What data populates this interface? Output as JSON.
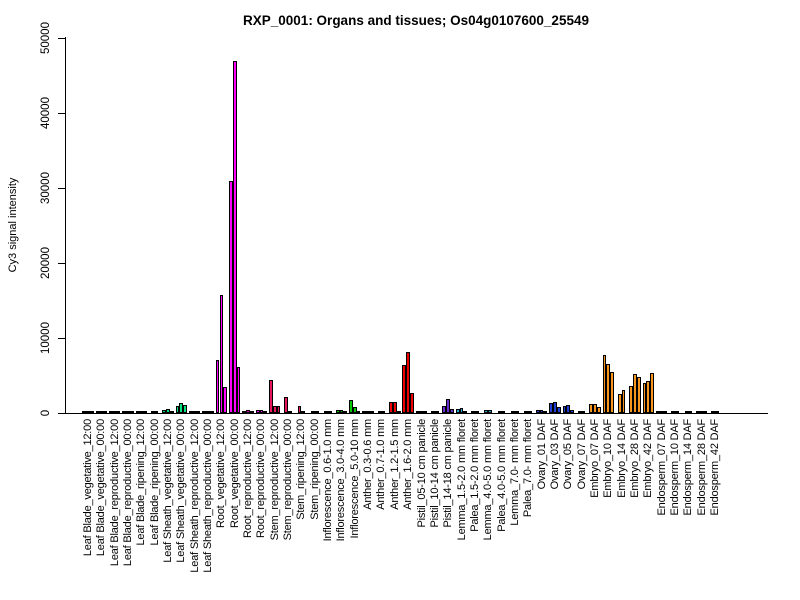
{
  "chart_data": {
    "type": "bar",
    "title": "RXP_0001: Organs and tissues; Os04g0107600_25549",
    "ylabel": "Cy3 signal intensity",
    "xlabel": "",
    "ylim": [
      0,
      50000
    ],
    "yticks": [
      0,
      10000,
      20000,
      30000,
      40000,
      50000
    ],
    "grid": false,
    "legend": "none",
    "bar_border_color": "#000000",
    "organ_colors": {
      "leaf_blade": "#005a00",
      "leaf_sheath": "#00e07d",
      "root": "#ff00ff",
      "stem": "#e8175d",
      "inflorescence": "#00c800",
      "anther": "#ee0000",
      "pistil": "#6a2fd0",
      "lemma": "#29abe2",
      "palea": "#29abe2",
      "ovary": "#1f3fd4",
      "embryo": "#f7941d",
      "endosperm": "#77651a"
    },
    "groups": [
      {
        "label": "Leaf Blade_vegetative_12:00",
        "organ": "leaf_blade",
        "color": "#005a00",
        "values": [
          150,
          200,
          150
        ]
      },
      {
        "label": "Leaf Blade_vegetative_00:00",
        "organ": "leaf_blade",
        "color": "#005a00",
        "values": [
          150,
          200,
          150
        ]
      },
      {
        "label": "Leaf Blade_reproductive_12:00",
        "organ": "leaf_blade",
        "color": "#005a00",
        "values": [
          200,
          150,
          150
        ]
      },
      {
        "label": "Leaf Blade_reproductive_00:00",
        "organ": "leaf_blade",
        "color": "#005a00",
        "values": [
          150,
          200,
          150
        ]
      },
      {
        "label": "Leaf Blade_ripening_12:00",
        "organ": "leaf_blade",
        "color": "#005a00",
        "values": [
          150,
          200,
          150
        ]
      },
      {
        "label": "Leaf Blade_ripening_00:00",
        "organ": "leaf_blade",
        "color": "#005a00",
        "values": [
          150,
          150
        ]
      },
      {
        "label": "Leaf Sheath_vegetative_12:00",
        "organ": "leaf_sheath",
        "color": "#00e07d",
        "values": [
          400,
          500,
          300
        ]
      },
      {
        "label": "Leaf Sheath_vegetative_00:00",
        "organ": "leaf_sheath",
        "color": "#00e07d",
        "values": [
          900,
          1300,
          1100
        ]
      },
      {
        "label": "Leaf Sheath_reproductive_12:00",
        "organ": "leaf_sheath",
        "color": "#00e07d",
        "values": [
          200,
          150,
          150
        ]
      },
      {
        "label": "Leaf Sheath_reproductive_00:00",
        "organ": "leaf_sheath",
        "color": "#00e07d",
        "values": [
          150,
          200,
          150
        ]
      },
      {
        "label": "Root_vegetative_12:00",
        "organ": "root",
        "color": "#ff00ff",
        "values": [
          7100,
          15700,
          3500
        ]
      },
      {
        "label": "Root_vegetative_00:00",
        "organ": "root",
        "color": "#ff00ff",
        "values": [
          31000,
          47000,
          6100
        ]
      },
      {
        "label": "Root_reproductive_12:00",
        "organ": "root",
        "color": "#ff00ff",
        "values": [
          300,
          350,
          250
        ]
      },
      {
        "label": "Root_reproductive_00:00",
        "organ": "root",
        "color": "#ff00ff",
        "values": [
          400,
          350,
          300
        ]
      },
      {
        "label": "Stem_reproductive_12:00",
        "organ": "stem",
        "color": "#e8175d",
        "values": [
          4400,
          1000,
          950
        ]
      },
      {
        "label": "Stem_reproductive_00:00",
        "organ": "stem",
        "color": "#e8175d",
        "values": [
          2100,
          250
        ]
      },
      {
        "label": "Stem_ripening_12:00",
        "organ": "stem",
        "color": "#e8175d",
        "values": [
          900,
          250
        ]
      },
      {
        "label": "Stem_ripening_00:00",
        "organ": "stem",
        "color": "#e8175d",
        "values": [
          250,
          200
        ]
      },
      {
        "label": "Inflorescence_0.6-1.0 mm",
        "organ": "inflorescence",
        "color": "#00c800",
        "values": [
          150,
          150
        ]
      },
      {
        "label": "Inflorescence_3.0-4.0 mm",
        "organ": "inflorescence",
        "color": "#00c800",
        "values": [
          350,
          400,
          300
        ]
      },
      {
        "label": "Inflorescence_5.0-10 mm",
        "organ": "inflorescence",
        "color": "#00c800",
        "values": [
          1800,
          800,
          250
        ]
      },
      {
        "label": "Anther_0.3-0.6 mm",
        "organ": "anther",
        "color": "#ee0000",
        "values": [
          250,
          200,
          150
        ]
      },
      {
        "label": "Anther_0.7-1.0 mm",
        "organ": "anther",
        "color": "#ee0000",
        "values": [
          250,
          200
        ]
      },
      {
        "label": "Anther_1.2-1.5 mm",
        "organ": "anther",
        "color": "#ee0000",
        "values": [
          1500,
          1450,
          250
        ]
      },
      {
        "label": "Anther_1.6-2.0 mm",
        "organ": "anther",
        "color": "#ee0000",
        "values": [
          6400,
          8100,
          2700
        ]
      },
      {
        "label": "Pistil_05-10 cm panicle",
        "organ": "pistil",
        "color": "#6a2fd0",
        "values": [
          300,
          250,
          200
        ]
      },
      {
        "label": "Pistil_10-14 cm panicle",
        "organ": "pistil",
        "color": "#6a2fd0",
        "values": [
          250,
          200
        ]
      },
      {
        "label": "Pistil_14-18 cm panicle",
        "organ": "pistil",
        "color": "#6a2fd0",
        "values": [
          1000,
          1900,
          600
        ]
      },
      {
        "label": "Lemma_1.5-2.0 mm floret",
        "organ": "lemma",
        "color": "#29abe2",
        "values": [
          550,
          650,
          300
        ]
      },
      {
        "label": "Palea_1.5-2.0 mm floret",
        "organ": "palea",
        "color": "#29abe2",
        "values": [
          300,
          250
        ]
      },
      {
        "label": "Lemma_4.0-5.0 mm floret",
        "organ": "lemma",
        "color": "#29abe2",
        "values": [
          450,
          400
        ]
      },
      {
        "label": "Palea_4.0-5.0 mm floret",
        "organ": "palea",
        "color": "#29abe2",
        "values": [
          250,
          200
        ]
      },
      {
        "label": "Lemma_7.0- mm floret",
        "organ": "lemma",
        "color": "#29abe2",
        "values": [
          200,
          150
        ]
      },
      {
        "label": "Palea_7.0- mm floret",
        "organ": "palea",
        "color": "#29abe2",
        "values": [
          200,
          150
        ]
      },
      {
        "label": "Ovary_01 DAF",
        "organ": "ovary",
        "color": "#1f3fd4",
        "values": [
          450,
          350,
          250
        ]
      },
      {
        "label": "Ovary_03 DAF",
        "organ": "ovary",
        "color": "#1f3fd4",
        "values": [
          1300,
          1500,
          800
        ]
      },
      {
        "label": "Ovary_05 DAF",
        "organ": "ovary",
        "color": "#1f3fd4",
        "values": [
          1000,
          1100,
          350
        ]
      },
      {
        "label": "Ovary_07 DAF",
        "organ": "ovary",
        "color": "#1f3fd4",
        "values": [
          300,
          250
        ]
      },
      {
        "label": "Embryo_07 DAF",
        "organ": "embryo",
        "color": "#f7941d",
        "values": [
          1200,
          1250,
          750
        ]
      },
      {
        "label": "Embryo_10 DAF",
        "organ": "embryo",
        "color": "#f7941d",
        "values": [
          7700,
          6500,
          5500
        ]
      },
      {
        "label": "Embryo_14 DAF",
        "organ": "embryo",
        "color": "#f7941d",
        "values": [
          2600,
          3100
        ]
      },
      {
        "label": "Embryo_28 DAF",
        "organ": "embryo",
        "color": "#f7941d",
        "values": [
          3600,
          5200,
          4800
        ]
      },
      {
        "label": "Embryo_42 DAF",
        "organ": "embryo",
        "color": "#f7941d",
        "values": [
          4000,
          4300,
          5300
        ]
      },
      {
        "label": "Endosperm_07 DAF",
        "organ": "endosperm",
        "color": "#77651a",
        "values": [
          200,
          250,
          150
        ]
      },
      {
        "label": "Endosperm_10 DAF",
        "organ": "endosperm",
        "color": "#77651a",
        "values": [
          200,
          150
        ]
      },
      {
        "label": "Endosperm_14 DAF",
        "organ": "endosperm",
        "color": "#77651a",
        "values": [
          250,
          200
        ]
      },
      {
        "label": "Endosperm_28 DAF",
        "organ": "endosperm",
        "color": "#77651a",
        "values": [
          200,
          150,
          150
        ]
      },
      {
        "label": "Endosperm_42 DAF",
        "organ": "endosperm",
        "color": "#77651a",
        "values": [
          150,
          150
        ]
      }
    ]
  }
}
